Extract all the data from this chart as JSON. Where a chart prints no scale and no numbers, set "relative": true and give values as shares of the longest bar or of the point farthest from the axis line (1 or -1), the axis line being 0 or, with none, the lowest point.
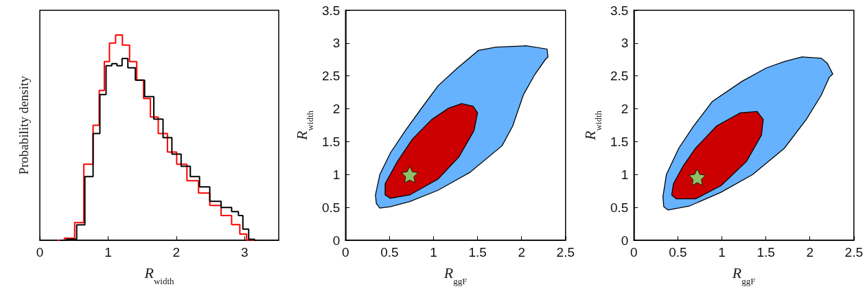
{
  "chart_data": [
    {
      "type": "step",
      "relative": true,
      "xlabel": "R$_{width}$",
      "ylabel": "Probability density",
      "xlim": [
        0,
        3.5
      ],
      "xticks": [
        0,
        1,
        2,
        3
      ],
      "grid": false,
      "tick_labels": "x",
      "series": [
        {
          "color": "#ff0000",
          "x": [
            0.26,
            0.46,
            0.56,
            0.73,
            0.83,
            0.91,
            0.98,
            1.06,
            1.16,
            1.26,
            1.37,
            1.47,
            1.57,
            1.67,
            1.8,
            1.94,
            2.07,
            2.24,
            2.41,
            2.57,
            2.74,
            2.88,
            2.98,
            3.08,
            3.14
          ],
          "values": [
            0,
            0.01,
            0.086,
            0.37,
            0.56,
            0.73,
            0.87,
            0.96,
            1.0,
            0.95,
            0.87,
            0.78,
            0.69,
            0.6,
            0.52,
            0.43,
            0.37,
            0.29,
            0.23,
            0.17,
            0.12,
            0.076,
            0.03,
            0.002,
            0
          ]
        },
        {
          "color": "#000000",
          "x": [
            0.29,
            0.49,
            0.59,
            0.73,
            0.83,
            0.93,
            1.01,
            1.1,
            1.16,
            1.25,
            1.33,
            1.47,
            1.6,
            1.74,
            1.87,
            2.0,
            2.14,
            2.27,
            2.41,
            2.57,
            2.74,
            2.88,
            2.94,
            3.01,
            3.11,
            3.18
          ],
          "values": [
            0,
            0.005,
            0.075,
            0.31,
            0.52,
            0.71,
            0.85,
            0.86,
            0.85,
            0.885,
            0.84,
            0.78,
            0.7,
            0.59,
            0.5,
            0.42,
            0.36,
            0.31,
            0.26,
            0.19,
            0.16,
            0.14,
            0.12,
            0.054,
            0.005,
            0
          ]
        }
      ]
    },
    {
      "type": "area",
      "xlabel": "R$_{ggF}$",
      "ylabel": "R$_{width}$",
      "xlim": [
        0,
        2.5
      ],
      "xticks": [
        0,
        0.5,
        1,
        1.5,
        2,
        2.5
      ],
      "ylim": [
        0,
        3.5
      ],
      "yticks": [
        0,
        0.5,
        1,
        1.5,
        2,
        2.5,
        3,
        3.5
      ],
      "grid": false,
      "series": [
        {
          "color": "#66b2ff",
          "x": [
            0.39,
            0.51,
            0.73,
            1.05,
            1.41,
            1.78,
            1.9,
            2.02,
            2.15,
            2.27,
            2.3,
            2.29,
            2.05,
            1.71,
            1.51,
            1.27,
            1.05,
            0.88,
            0.68,
            0.51,
            0.39,
            0.34,
            0.35
          ],
          "values": [
            0.49,
            0.51,
            0.59,
            0.76,
            1.03,
            1.44,
            1.74,
            2.21,
            2.52,
            2.75,
            2.79,
            2.91,
            2.96,
            2.94,
            2.89,
            2.62,
            2.35,
            2.04,
            1.67,
            1.33,
            1.0,
            0.69,
            0.56
          ]
        },
        {
          "color": "#cc0000",
          "x": [
            0.51,
            0.73,
            1.05,
            1.29,
            1.46,
            1.5,
            1.45,
            1.32,
            1.17,
            0.98,
            0.76,
            0.59,
            0.45,
            0.45
          ],
          "values": [
            0.64,
            0.69,
            0.93,
            1.27,
            1.67,
            1.94,
            2.04,
            2.08,
            2.01,
            1.84,
            1.54,
            1.2,
            0.86,
            0.69
          ]
        },
        {
          "type": "scatter",
          "marker": "star",
          "color": "#80ee80",
          "x": [
            0.73
          ],
          "values": [
            1.0
          ]
        }
      ]
    },
    {
      "type": "area",
      "xlabel": "R$_{ggF}$",
      "ylabel": "R$_{width}$",
      "xlim": [
        0,
        2.5
      ],
      "xticks": [
        0,
        0.5,
        1,
        1.5,
        2,
        2.5
      ],
      "ylim": [
        0,
        3.5
      ],
      "yticks": [
        0,
        0.5,
        1,
        1.5,
        2,
        2.5,
        3,
        3.5
      ],
      "grid": false,
      "series": [
        {
          "color": "#66b2ff",
          "x": [
            0.39,
            0.63,
            0.99,
            1.35,
            1.71,
            1.96,
            2.13,
            2.22,
            2.26,
            2.2,
            2.13,
            1.91,
            1.71,
            1.5,
            1.23,
            0.89,
            0.68,
            0.51,
            0.37,
            0.33,
            0.34
          ],
          "values": [
            0.46,
            0.52,
            0.73,
            1.0,
            1.4,
            1.84,
            2.21,
            2.48,
            2.53,
            2.69,
            2.77,
            2.79,
            2.72,
            2.62,
            2.42,
            2.11,
            1.74,
            1.4,
            1.0,
            0.66,
            0.51
          ]
        },
        {
          "color": "#cc0000",
          "x": [
            0.48,
            0.7,
            0.99,
            1.28,
            1.45,
            1.47,
            1.4,
            1.21,
            0.94,
            0.7,
            0.56,
            0.45,
            0.43
          ],
          "values": [
            0.63,
            0.63,
            0.83,
            1.2,
            1.6,
            1.84,
            1.96,
            1.94,
            1.74,
            1.4,
            1.13,
            0.86,
            0.69
          ]
        },
        {
          "type": "scatter",
          "marker": "star",
          "color": "#80ee80",
          "x": [
            0.72
          ],
          "values": [
            0.96
          ]
        }
      ]
    }
  ]
}
